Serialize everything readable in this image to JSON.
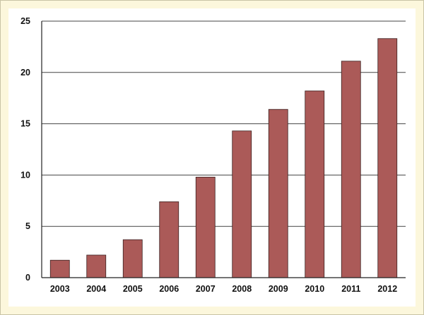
{
  "chart_data": {
    "type": "bar",
    "title": "",
    "xlabel": "",
    "ylabel": "",
    "categories": [
      "2003",
      "2004",
      "2005",
      "2006",
      "2007",
      "2008",
      "2009",
      "2010",
      "2011",
      "2012"
    ],
    "values": [
      1.7,
      2.2,
      3.7,
      7.4,
      9.8,
      14.3,
      16.4,
      18.2,
      21.1,
      23.3
    ],
    "ylim": [
      0,
      25
    ],
    "yticks": [
      "0",
      "5",
      "10",
      "15",
      "20",
      "25"
    ],
    "grid": true,
    "colors": {
      "bar": "#ab5a58",
      "bar_stroke": "#3a1f1f",
      "grid": "#444444",
      "background": "#fcf7dc",
      "plot": "#ffffff"
    }
  }
}
